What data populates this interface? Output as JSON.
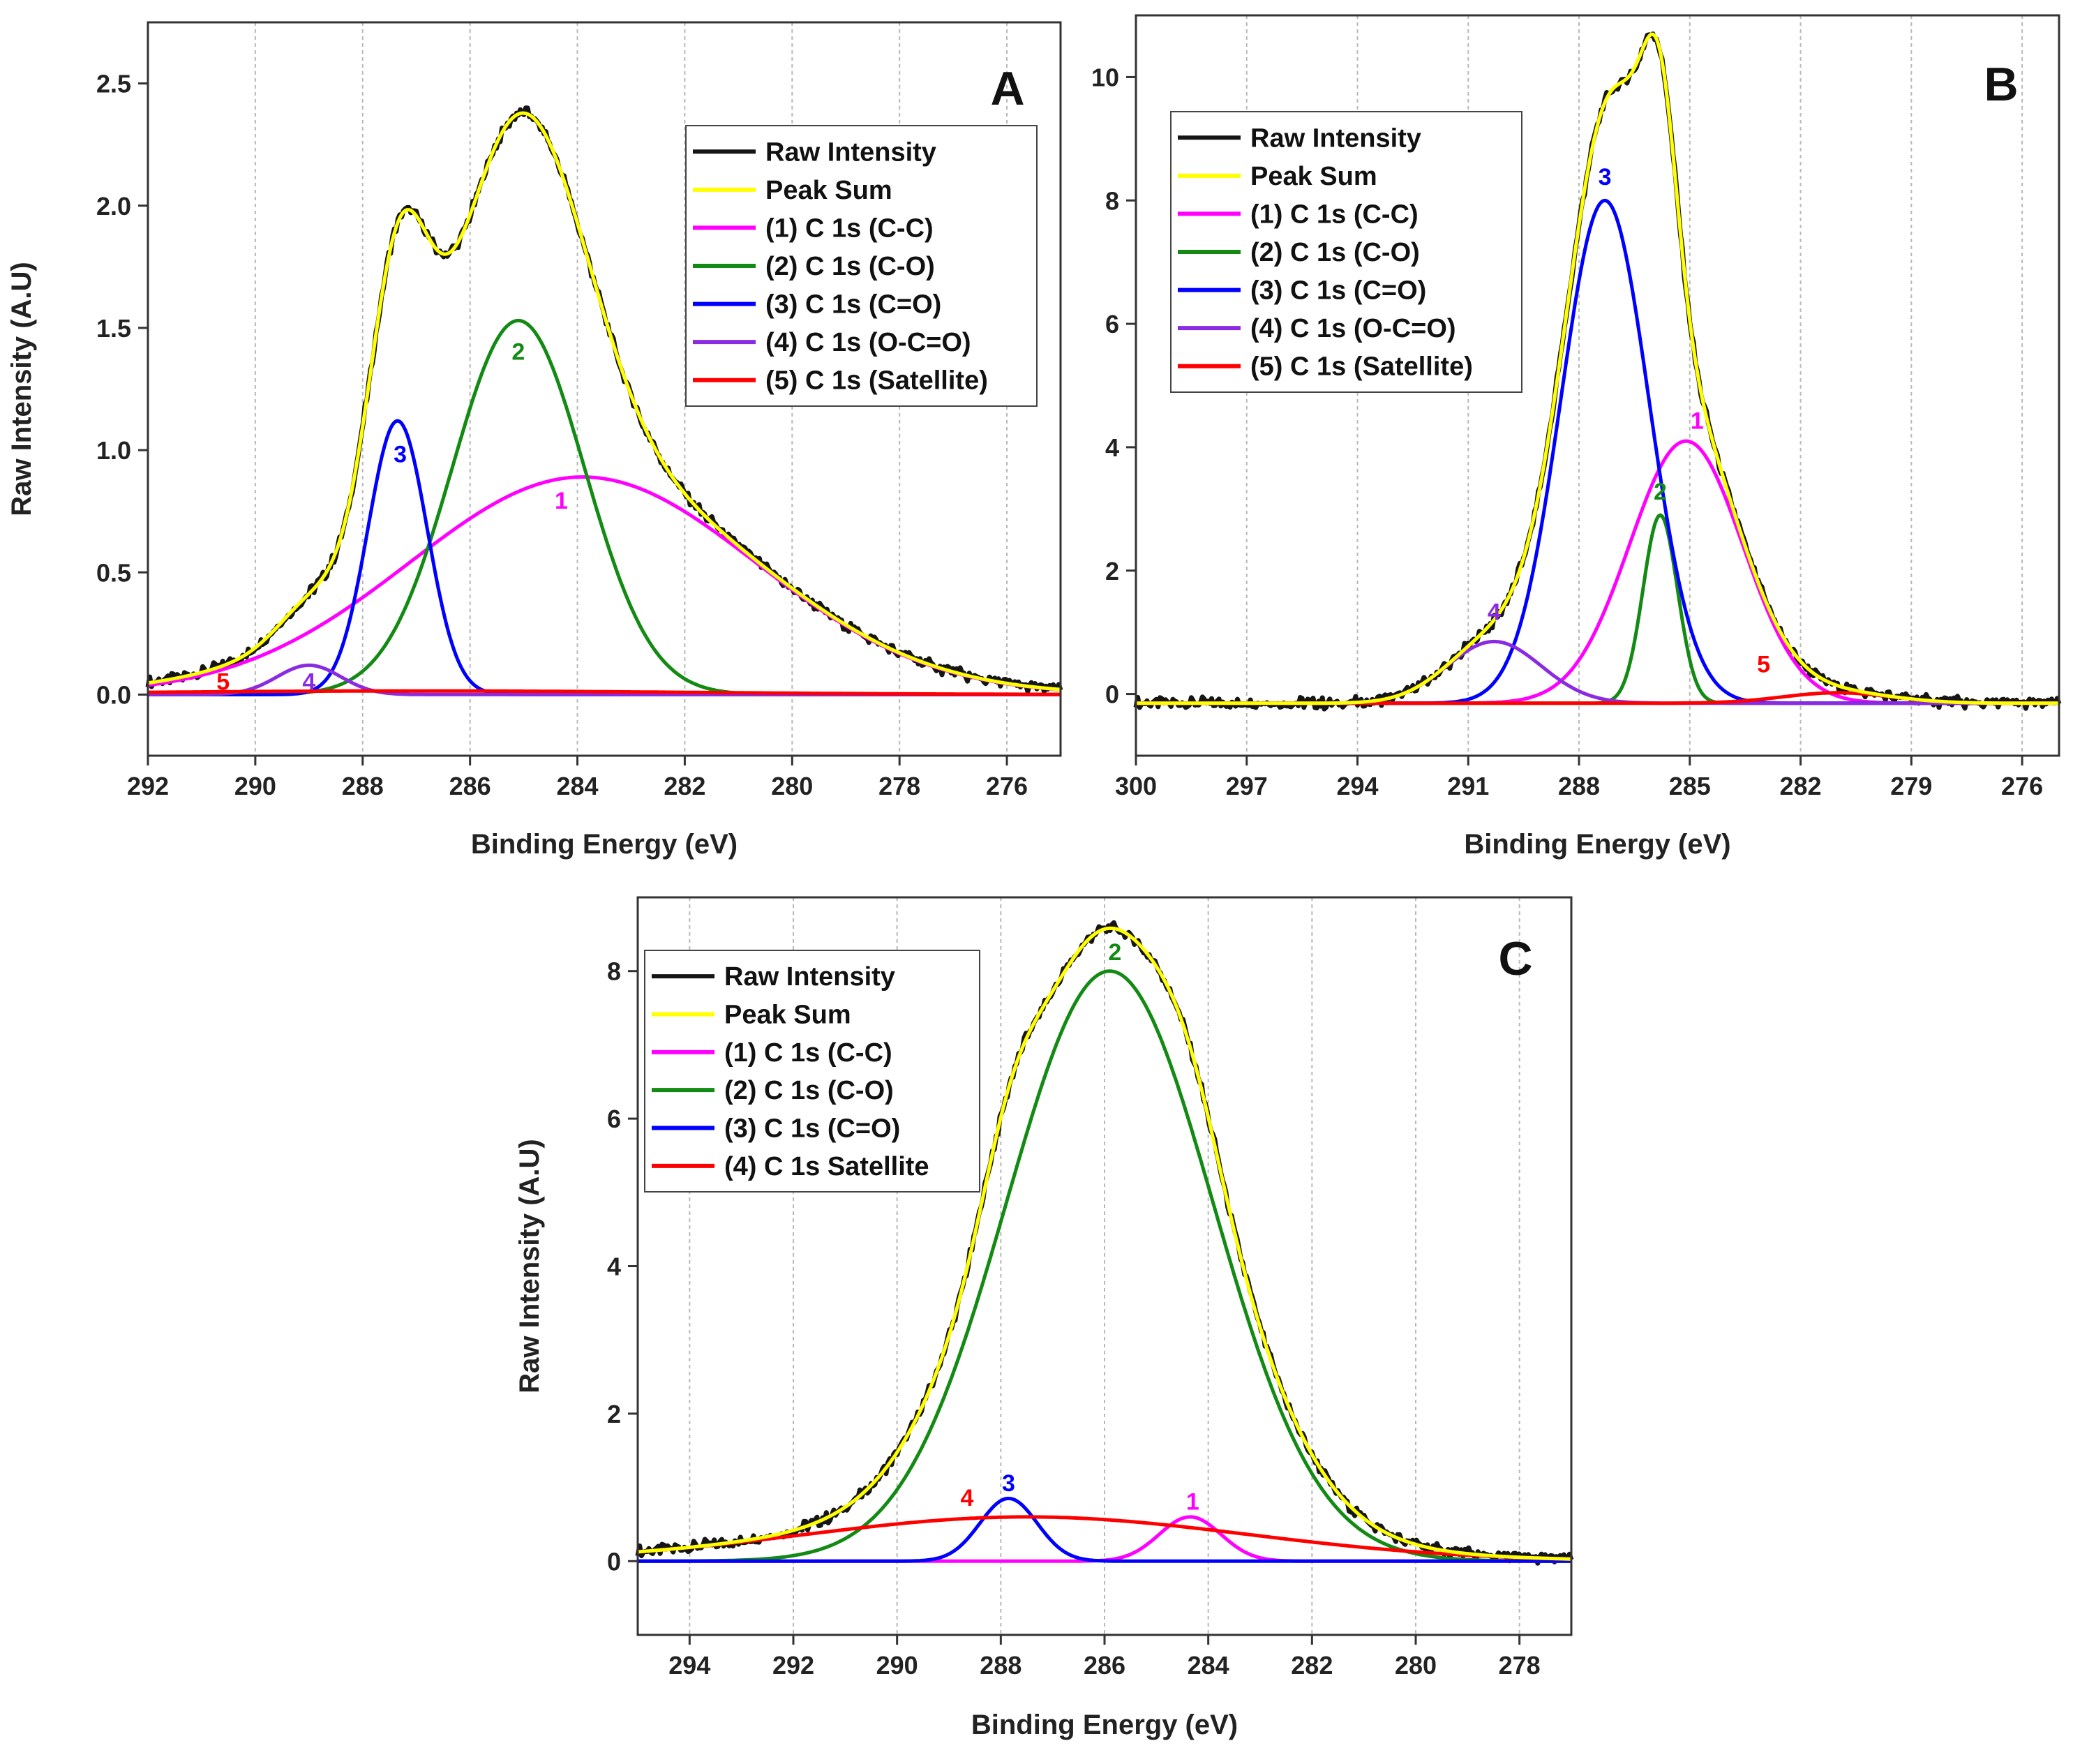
{
  "chart_data": [
    {
      "panel": "A",
      "type": "line",
      "xlabel": "Binding Energy (eV)",
      "ylabel": "Raw Intensity (A.U)",
      "xlim": [
        292,
        275
      ],
      "ylim": [
        -0.25,
        2.75
      ],
      "xticks": [
        292,
        290,
        288,
        286,
        284,
        282,
        280,
        278,
        276
      ],
      "yticks": [
        0.0,
        0.5,
        1.0,
        1.5,
        2.0,
        2.5
      ],
      "yticks_decimals": 1,
      "grid": "vertical-dashed",
      "legend_position": "top-right",
      "legend": [
        "Raw Intensity",
        "Peak Sum",
        "(1) C 1s (C-C)",
        "(2) C 1s (C-O)",
        "(3) C 1s (C=O)",
        "(4) C 1s (O-C=O)",
        "(5) C 1s (Satellite)"
      ],
      "components": [
        {
          "id": "1",
          "name": "(1) C 1s (C-C)",
          "color": "#ff00ff",
          "center": 283.9,
          "height": 0.89,
          "fwhm": 7.6
        },
        {
          "id": "2",
          "name": "(2) C 1s (C-O)",
          "color": "#138a13",
          "center": 285.1,
          "height": 1.53,
          "fwhm": 2.9
        },
        {
          "id": "3",
          "name": "(3) C 1s (C=O)",
          "color": "#0000ff",
          "center": 287.35,
          "height": 1.12,
          "fwhm": 1.3
        },
        {
          "id": "4",
          "name": "(4) C 1s (O-C=O)",
          "color": "#8a2be2",
          "center": 289.0,
          "height": 0.12,
          "fwhm": 1.4
        },
        {
          "id": "5",
          "name": "(5) C 1s (Satellite)",
          "color": "#ff0000",
          "center": 287.0,
          "height": 0.015,
          "fwhm": 12
        }
      ],
      "labels": [
        {
          "text": "1",
          "x": 284.3,
          "y": 0.76,
          "color": "#ff00ff"
        },
        {
          "text": "2",
          "x": 285.1,
          "y": 1.37,
          "color": "#138a13"
        },
        {
          "text": "3",
          "x": 287.3,
          "y": 0.95,
          "color": "#0000ff"
        },
        {
          "text": "4",
          "x": 289.0,
          "y": 0.02,
          "color": "#8a2be2"
        },
        {
          "text": "5",
          "x": 290.6,
          "y": 0.02,
          "color": "#ff0000"
        }
      ]
    },
    {
      "panel": "B",
      "type": "line",
      "xlabel": "Binding Energy (eV)",
      "ylabel": "",
      "xlim": [
        300,
        275
      ],
      "ylim": [
        -1.0,
        11.0
      ],
      "xticks": [
        300,
        297,
        294,
        291,
        288,
        285,
        282,
        279,
        276
      ],
      "yticks": [
        0,
        2,
        4,
        6,
        8,
        10
      ],
      "yticks_decimals": 0,
      "grid": "vertical-dashed",
      "legend_position": "top-left",
      "legend": [
        "Raw Intensity",
        "Peak Sum",
        "(1) C 1s (C-C)",
        "(2) C 1s (C-O)",
        "(3) C 1s (C=O)",
        "(4) C 1s (O-C=O)",
        "(5) C 1s (Satellite)"
      ],
      "baseline": {
        "left": -0.15,
        "right": -0.15
      },
      "components": [
        {
          "id": "1",
          "name": "(1) C 1s (C-C)",
          "color": "#ff00ff",
          "center": 285.1,
          "height": 4.25,
          "fwhm": 3.6
        },
        {
          "id": "2",
          "name": "(2) C 1s (C-O)",
          "color": "#138a13",
          "center": 285.8,
          "height": 3.05,
          "fwhm": 1.1
        },
        {
          "id": "3",
          "name": "(3) C 1s (C=O)",
          "color": "#0000ff",
          "center": 287.3,
          "height": 8.15,
          "fwhm": 2.8
        },
        {
          "id": "4",
          "name": "(4) C 1s (O-C=O)",
          "color": "#8a2be2",
          "center": 290.3,
          "height": 1.0,
          "fwhm": 3.0
        },
        {
          "id": "5",
          "name": "(5) C 1s (Satellite)",
          "color": "#ff0000",
          "center": 281.0,
          "height": 0.17,
          "fwhm": 3.5
        }
      ],
      "labels": [
        {
          "text": "1",
          "x": 284.8,
          "y": 4.3,
          "color": "#ff00ff"
        },
        {
          "text": "2",
          "x": 285.8,
          "y": 3.15,
          "color": "#138a13"
        },
        {
          "text": "3",
          "x": 287.3,
          "y": 8.25,
          "color": "#0000ff"
        },
        {
          "text": "4",
          "x": 290.3,
          "y": 1.2,
          "color": "#8a2be2"
        },
        {
          "text": "5",
          "x": 283.0,
          "y": 0.35,
          "color": "#ff0000"
        }
      ]
    },
    {
      "panel": "C",
      "type": "line",
      "xlabel": "Binding Energy (eV)",
      "ylabel": "Raw Intensity (A.U)",
      "xlim": [
        295,
        277
      ],
      "ylim": [
        -1.0,
        9.0
      ],
      "xticks": [
        294,
        292,
        290,
        288,
        286,
        284,
        282,
        280,
        278
      ],
      "yticks": [
        0,
        2,
        4,
        6,
        8
      ],
      "yticks_decimals": 0,
      "grid": "vertical-dashed",
      "legend_position": "top-left",
      "legend": [
        "Raw Intensity",
        "Peak Sum",
        "(1) C 1s (C-C)",
        "(2) C 1s (C-O)",
        "(3) C 1s (C=O)",
        "(4) C 1s Satellite"
      ],
      "components": [
        {
          "id": "1",
          "name": "(1) C 1s (C-C)",
          "color": "#ff00ff",
          "center": 284.35,
          "height": 0.6,
          "fwhm": 1.4
        },
        {
          "id": "2",
          "name": "(2) C 1s (C-O)",
          "color": "#138a13",
          "center": 285.9,
          "height": 8.0,
          "fwhm": 4.7
        },
        {
          "id": "3",
          "name": "(3) C 1s (C=O)",
          "color": "#0000ff",
          "center": 287.85,
          "height": 0.85,
          "fwhm": 1.3
        },
        {
          "id": "4",
          "name": "(4) C 1s Satellite",
          "color": "#ff0000",
          "center": 287.5,
          "height": 0.6,
          "fwhm": 10
        }
      ],
      "labels": [
        {
          "text": "1",
          "x": 284.3,
          "y": 0.7,
          "color": "#ff00ff"
        },
        {
          "text": "2",
          "x": 285.8,
          "y": 8.15,
          "color": "#138a13"
        },
        {
          "text": "3",
          "x": 287.85,
          "y": 0.95,
          "color": "#0000ff"
        },
        {
          "text": "4",
          "x": 288.65,
          "y": 0.75,
          "color": "#ff0000"
        }
      ]
    }
  ],
  "colors": {
    "raw": "#151515",
    "sum": "#ffff00"
  }
}
